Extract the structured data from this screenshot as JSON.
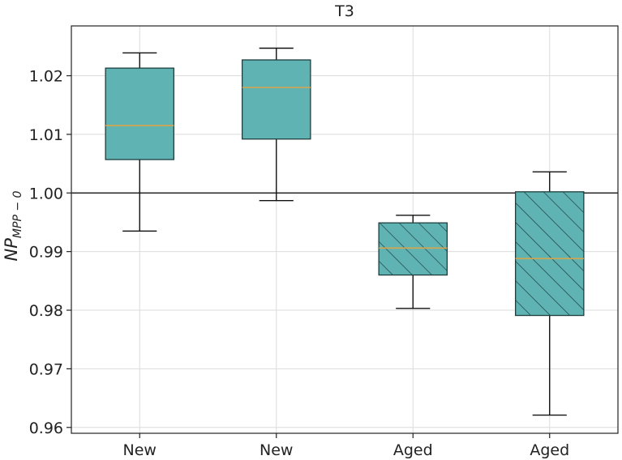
{
  "chart_data": {
    "type": "box",
    "title": "T3",
    "ylabel": "NP",
    "ylabel_subscript": "MPP − 0",
    "ylim": [
      0.959,
      1.0285
    ],
    "yticks": [
      "0.96",
      "0.97",
      "0.98",
      "0.99",
      "1.00",
      "1.01",
      "1.02"
    ],
    "grid": true,
    "reference_line": 1.0,
    "categories": [
      "New",
      "New",
      "Aged",
      "Aged"
    ],
    "boxes": [
      {
        "category": "New",
        "whisker_low": 0.9935,
        "q1": 1.0057,
        "median": 1.0115,
        "q3": 1.0213,
        "whisker_high": 1.0239,
        "hatched": false
      },
      {
        "category": "New",
        "whisker_low": 0.9987,
        "q1": 1.0092,
        "median": 1.018,
        "q3": 1.0227,
        "whisker_high": 1.0247,
        "hatched": false
      },
      {
        "category": "Aged",
        "whisker_low": 0.9803,
        "q1": 0.986,
        "median": 0.9906,
        "q3": 0.9949,
        "whisker_high": 0.9962,
        "hatched": true
      },
      {
        "category": "Aged",
        "whisker_low": 0.9621,
        "q1": 0.9791,
        "median": 0.9888,
        "q3": 1.0002,
        "whisker_high": 1.0036,
        "hatched": true
      }
    ],
    "colors": {
      "box_fill": "#5fb3b3",
      "median": "#d9a54a",
      "edge": "#1f3f3f",
      "grid": "#dcdcdc"
    }
  }
}
